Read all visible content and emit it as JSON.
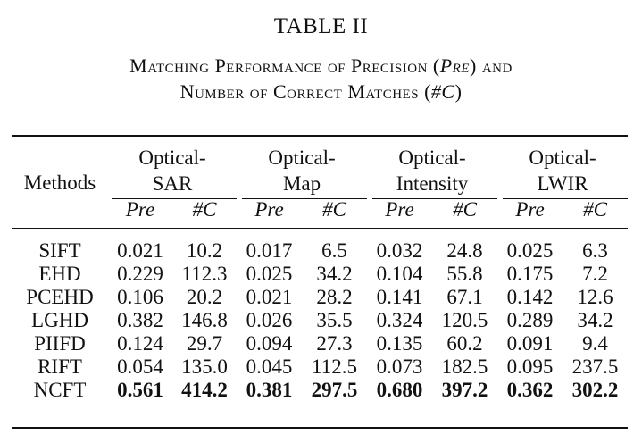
{
  "table_label": "TABLE II",
  "caption": {
    "line1_a": "Matching Performance of Precision (",
    "line1_b": "Pre",
    "line1_c": ") and",
    "line2_a": "Number of Correct Matches (",
    "line2_b": "#C",
    "line2_c": ")"
  },
  "header": {
    "methods": "Methods",
    "groups": [
      {
        "line1": "Optical-",
        "line2": "SAR"
      },
      {
        "line1": "Optical-",
        "line2": "Map"
      },
      {
        "line1": "Optical-",
        "line2": "Intensity"
      },
      {
        "line1": "Optical-",
        "line2": "LWIR"
      }
    ],
    "sub": [
      "Pre",
      "#C",
      "Pre",
      "#C",
      "Pre",
      "#C",
      "Pre",
      "#C"
    ]
  },
  "rows": [
    {
      "method": "SIFT",
      "values": [
        "0.021",
        "10.2",
        "0.017",
        "6.5",
        "0.032",
        "24.8",
        "0.025",
        "6.3"
      ]
    },
    {
      "method": "EHD",
      "values": [
        "0.229",
        "112.3",
        "0.025",
        "34.2",
        "0.104",
        "55.8",
        "0.175",
        "7.2"
      ]
    },
    {
      "method": "PCEHD",
      "values": [
        "0.106",
        "20.2",
        "0.021",
        "28.2",
        "0.141",
        "67.1",
        "0.142",
        "12.6"
      ]
    },
    {
      "method": "LGHD",
      "values": [
        "0.382",
        "146.8",
        "0.026",
        "35.5",
        "0.324",
        "120.5",
        "0.289",
        "34.2"
      ]
    },
    {
      "method": "PIIFD",
      "values": [
        "0.124",
        "29.7",
        "0.094",
        "27.3",
        "0.135",
        "60.2",
        "0.091",
        "9.4"
      ]
    },
    {
      "method": "RIFT",
      "values": [
        "0.054",
        "135.0",
        "0.045",
        "112.5",
        "0.073",
        "182.5",
        "0.095",
        "237.5"
      ]
    },
    {
      "method": "NCFT",
      "values": [
        "0.561",
        "414.2",
        "0.381",
        "297.5",
        "0.680",
        "397.2",
        "0.362",
        "302.2"
      ]
    }
  ]
}
